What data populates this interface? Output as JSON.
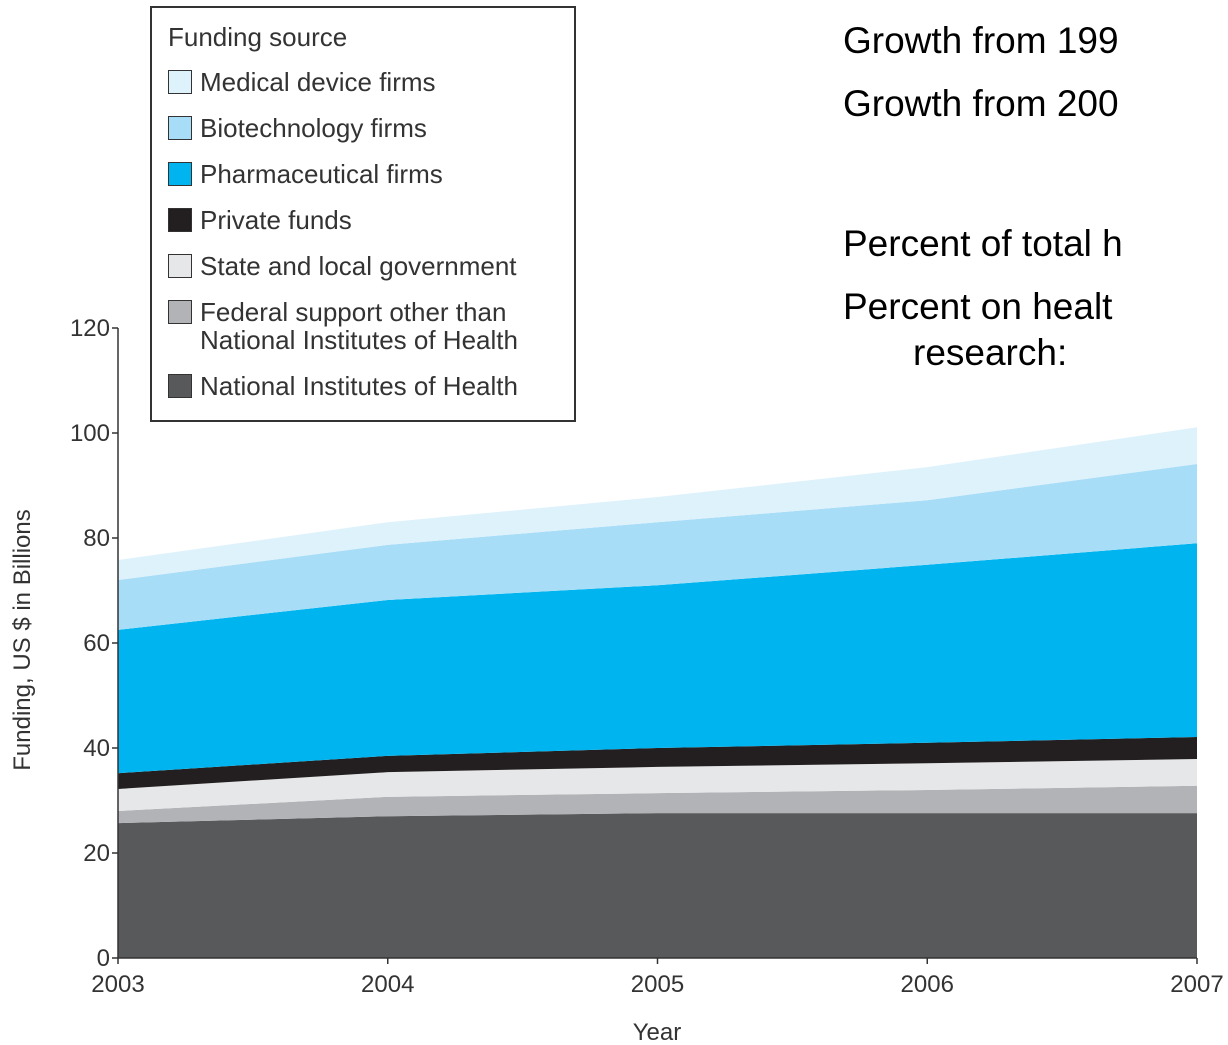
{
  "chart_data": {
    "type": "stacked-area",
    "legend_title": "Funding source",
    "x_label": "Year",
    "y_label": "Funding, US $ in Billions",
    "x": [
      2003,
      2004,
      2005,
      2006,
      2007
    ],
    "xlim": [
      2003,
      2007
    ],
    "xticks": [
      2003,
      2004,
      2005,
      2006,
      2007
    ],
    "ylim": [
      0,
      120
    ],
    "yticks": [
      0,
      20,
      40,
      60,
      80,
      100,
      120
    ],
    "legend_position": "upper left",
    "series": [
      {
        "name": "National Institutes of Health",
        "color": "#58595b",
        "values": [
          25.7,
          27.0,
          27.6,
          27.6,
          27.6
        ]
      },
      {
        "name": "Federal support other than National Institutes of Health",
        "color": "#b1b3b6",
        "values": [
          2.3,
          3.7,
          3.8,
          4.4,
          5.2
        ]
      },
      {
        "name": "State and local government",
        "color": "#e6e7e8",
        "values": [
          4.2,
          4.7,
          5.0,
          5.1,
          5.1
        ]
      },
      {
        "name": "Private funds",
        "color": "#231f20",
        "values": [
          3.0,
          3.1,
          3.6,
          3.9,
          4.2
        ]
      },
      {
        "name": "Pharmaceutical firms",
        "color": "#00b5ef",
        "values": [
          27.3,
          29.7,
          31.0,
          33.9,
          36.9
        ]
      },
      {
        "name": "Biotechnology firms",
        "color": "#a8ddf7",
        "values": [
          9.5,
          10.5,
          12.0,
          12.3,
          15.1
        ]
      },
      {
        "name": "Medical device firms",
        "color": "#def2fc",
        "values": [
          3.8,
          4.3,
          4.8,
          6.3,
          7.0
        ]
      }
    ],
    "annotations": [
      "Growth from 199",
      "Growth from 200",
      "Percent of total h",
      "Percent on healt",
      "research:"
    ]
  }
}
